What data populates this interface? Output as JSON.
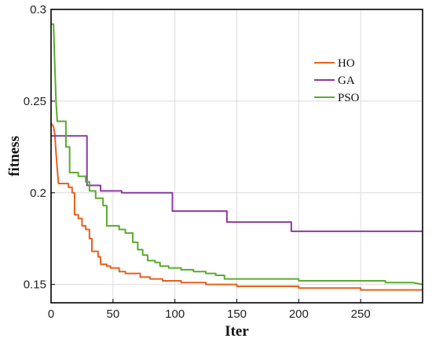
{
  "chart_data": {
    "type": "line",
    "xlabel": "Iter",
    "ylabel": "fitness",
    "xlim": [
      0,
      300
    ],
    "ylim": [
      0.14,
      0.3
    ],
    "xticks": [
      0,
      50,
      100,
      150,
      200,
      250
    ],
    "yticks": [
      0.15,
      0.2,
      0.25,
      0.3
    ],
    "ytick_labels": [
      "0.15",
      "0.2",
      "0.25",
      "0.3"
    ],
    "grid": true,
    "legend_position": "top-right",
    "series": [
      {
        "name": "HO",
        "color": "#e8601c",
        "points": [
          [
            0,
            0.238
          ],
          [
            2,
            0.236
          ],
          [
            3,
            0.232
          ],
          [
            4,
            0.222
          ],
          [
            5,
            0.213
          ],
          [
            6,
            0.205
          ],
          [
            14,
            0.205
          ],
          [
            14,
            0.203
          ],
          [
            17,
            0.203
          ],
          [
            17,
            0.2
          ],
          [
            19,
            0.2
          ],
          [
            19,
            0.188
          ],
          [
            22,
            0.188
          ],
          [
            22,
            0.186
          ],
          [
            25,
            0.186
          ],
          [
            25,
            0.182
          ],
          [
            28,
            0.182
          ],
          [
            28,
            0.18
          ],
          [
            31,
            0.18
          ],
          [
            31,
            0.175
          ],
          [
            33,
            0.175
          ],
          [
            33,
            0.168
          ],
          [
            38,
            0.168
          ],
          [
            38,
            0.165
          ],
          [
            40,
            0.165
          ],
          [
            40,
            0.161
          ],
          [
            45,
            0.161
          ],
          [
            45,
            0.16
          ],
          [
            48,
            0.16
          ],
          [
            48,
            0.159
          ],
          [
            55,
            0.159
          ],
          [
            55,
            0.157
          ],
          [
            60,
            0.157
          ],
          [
            60,
            0.156
          ],
          [
            72,
            0.156
          ],
          [
            72,
            0.154
          ],
          [
            80,
            0.154
          ],
          [
            80,
            0.153
          ],
          [
            90,
            0.153
          ],
          [
            90,
            0.152
          ],
          [
            105,
            0.152
          ],
          [
            105,
            0.151
          ],
          [
            125,
            0.151
          ],
          [
            125,
            0.15
          ],
          [
            150,
            0.15
          ],
          [
            150,
            0.149
          ],
          [
            200,
            0.149
          ],
          [
            200,
            0.148
          ],
          [
            250,
            0.148
          ],
          [
            250,
            0.147
          ],
          [
            300,
            0.147
          ]
        ]
      },
      {
        "name": "GA",
        "color": "#8b3aa0",
        "points": [
          [
            0,
            0.231
          ],
          [
            29,
            0.231
          ],
          [
            29,
            0.204
          ],
          [
            40,
            0.204
          ],
          [
            40,
            0.201
          ],
          [
            57,
            0.201
          ],
          [
            57,
            0.2
          ],
          [
            98,
            0.2
          ],
          [
            98,
            0.19
          ],
          [
            142,
            0.19
          ],
          [
            142,
            0.184
          ],
          [
            194,
            0.184
          ],
          [
            194,
            0.179
          ],
          [
            300,
            0.179
          ]
        ]
      },
      {
        "name": "PSO",
        "color": "#5aab2e",
        "points": [
          [
            0,
            0.292
          ],
          [
            2,
            0.292
          ],
          [
            3,
            0.27
          ],
          [
            4,
            0.25
          ],
          [
            5,
            0.239
          ],
          [
            12,
            0.239
          ],
          [
            12,
            0.225
          ],
          [
            15,
            0.225
          ],
          [
            15,
            0.211
          ],
          [
            22,
            0.211
          ],
          [
            22,
            0.209
          ],
          [
            28,
            0.209
          ],
          [
            28,
            0.206
          ],
          [
            31,
            0.206
          ],
          [
            31,
            0.201
          ],
          [
            36,
            0.201
          ],
          [
            36,
            0.197
          ],
          [
            42,
            0.197
          ],
          [
            42,
            0.193
          ],
          [
            45,
            0.193
          ],
          [
            45,
            0.182
          ],
          [
            55,
            0.182
          ],
          [
            55,
            0.18
          ],
          [
            60,
            0.18
          ],
          [
            60,
            0.178
          ],
          [
            66,
            0.178
          ],
          [
            66,
            0.173
          ],
          [
            70,
            0.173
          ],
          [
            70,
            0.169
          ],
          [
            74,
            0.169
          ],
          [
            74,
            0.166
          ],
          [
            78,
            0.166
          ],
          [
            78,
            0.163
          ],
          [
            84,
            0.163
          ],
          [
            84,
            0.162
          ],
          [
            88,
            0.162
          ],
          [
            88,
            0.16
          ],
          [
            95,
            0.16
          ],
          [
            95,
            0.159
          ],
          [
            105,
            0.159
          ],
          [
            105,
            0.158
          ],
          [
            115,
            0.158
          ],
          [
            115,
            0.157
          ],
          [
            125,
            0.157
          ],
          [
            125,
            0.156
          ],
          [
            133,
            0.156
          ],
          [
            133,
            0.155
          ],
          [
            140,
            0.155
          ],
          [
            140,
            0.153
          ],
          [
            200,
            0.153
          ],
          [
            200,
            0.152
          ],
          [
            270,
            0.152
          ],
          [
            270,
            0.151
          ],
          [
            292,
            0.151
          ],
          [
            300,
            0.15
          ]
        ]
      }
    ]
  }
}
